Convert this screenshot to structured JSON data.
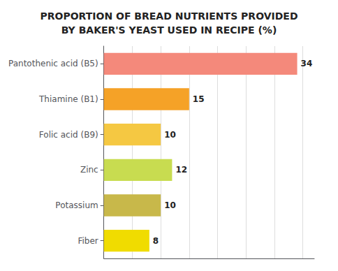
{
  "chart_data": {
    "type": "bar",
    "orientation": "horizontal",
    "title": "PROPORTION OF BREAD NUTRIENTS PROVIDED\nBY BAKER'S YEAST USED IN RECIPE (%)",
    "categories": [
      "Pantothenic acid (B5)",
      "Thiamine (B1)",
      "Folic acid (B9)",
      "Zinc",
      "Potassium",
      "Fiber"
    ],
    "values": [
      34,
      15,
      10,
      12,
      10,
      8
    ],
    "colors": [
      "#F4897B",
      "#F5A227",
      "#F5C842",
      "#C8DC50",
      "#C8B84A",
      "#F0DC00"
    ],
    "xlim": [
      0,
      37
    ],
    "xticks": [
      0,
      5,
      10,
      15,
      20,
      25,
      30,
      35
    ],
    "grid": true,
    "data_labels": true,
    "tick_labels": "y"
  }
}
